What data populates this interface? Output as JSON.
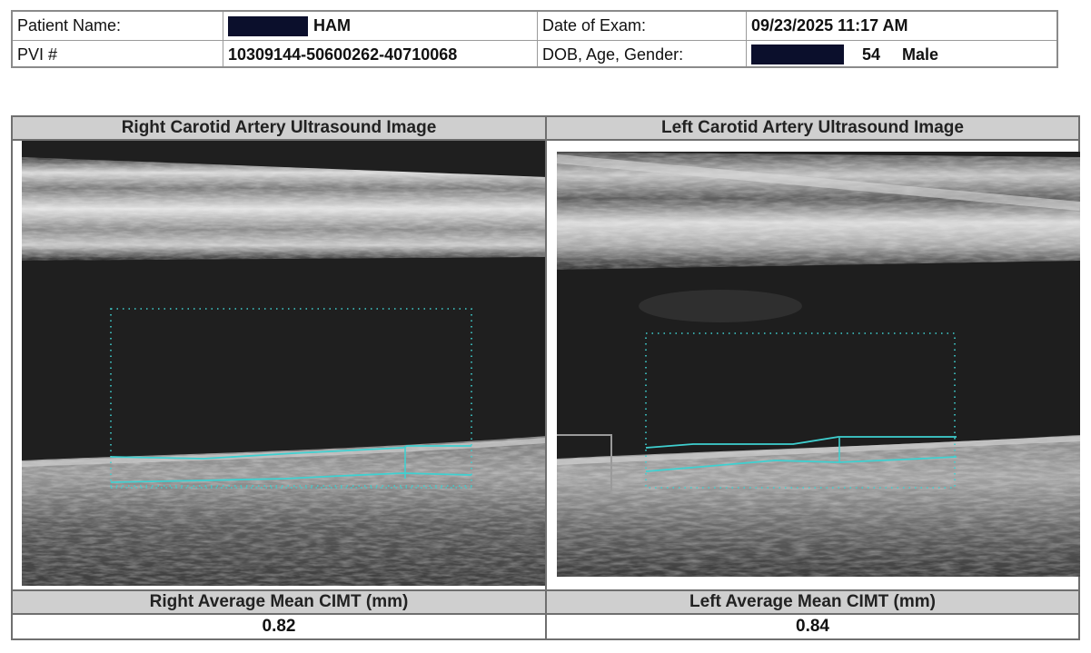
{
  "header": {
    "patient_name_label": "Patient Name:",
    "patient_name_value": "HAM",
    "pvi_label": "PVI #",
    "pvi_value": "10309144-50600262-40710068",
    "date_label": "Date of Exam:",
    "date_value": "09/23/2025 11:17 AM",
    "dob_label": "DOB, Age, Gender:",
    "age_value": "54",
    "gender_value": "Male"
  },
  "right": {
    "title": "Right Carotid Artery Ultrasound Image",
    "cimt_label": "Right Average Mean CIMT (mm)",
    "cimt_value": "0.82"
  },
  "left": {
    "title": "Left Carotid Artery Ultrasound Image",
    "cimt_label": "Left Average Mean CIMT (mm)",
    "cimt_value": "0.84"
  },
  "colors": {
    "redaction": "#0b0f2c",
    "header_bg": "#cfcfcf",
    "trace": "#3fd0d0"
  }
}
